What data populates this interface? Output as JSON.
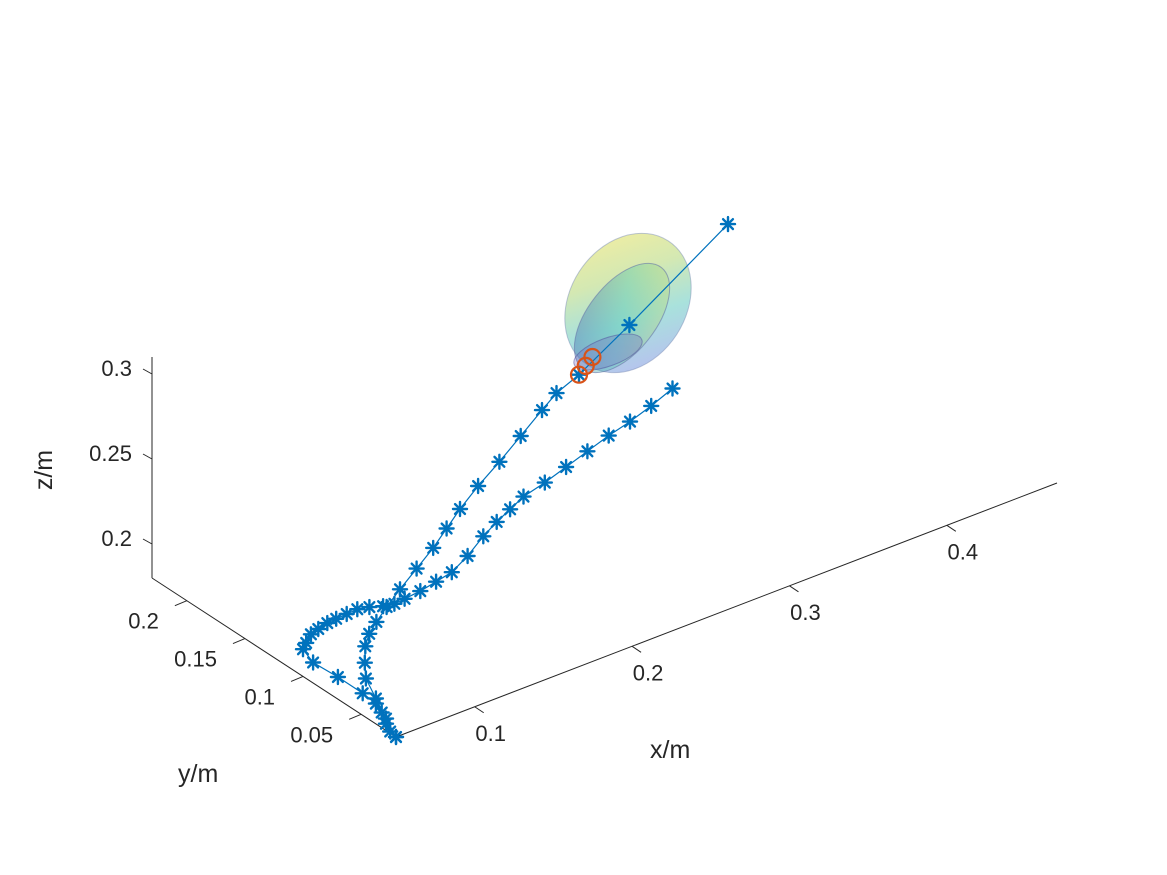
{
  "chart_data": {
    "type": "scatter",
    "title": "",
    "view": "3d",
    "xlabel": "x/m",
    "ylabel": "y/m",
    "zlabel": "z/m",
    "xticks": [
      "0.1",
      "0.2",
      "0.3",
      "0.4"
    ],
    "yticks": [
      "0.05",
      "0.1",
      "0.15",
      "0.2"
    ],
    "zticks": [
      "0.2",
      "0.25",
      "0.3"
    ],
    "xlim": [
      0.05,
      0.47
    ],
    "ylim": [
      0.02,
      0.23
    ],
    "zlim": [
      0.18,
      0.31
    ],
    "grid": false,
    "series": [
      {
        "marker": "asterisk",
        "color": "#0072BD",
        "points": [
          [
            0.05,
            0.02,
            0.18
          ],
          [
            0.05,
            0.025,
            0.181
          ],
          [
            0.051,
            0.03,
            0.183
          ],
          [
            0.052,
            0.035,
            0.187
          ],
          [
            0.052,
            0.04,
            0.19
          ],
          [
            0.051,
            0.05,
            0.192
          ],
          [
            0.05,
            0.07,
            0.193
          ],
          [
            0.049,
            0.09,
            0.193
          ],
          [
            0.05,
            0.1,
            0.196
          ],
          [
            0.052,
            0.1,
            0.199
          ],
          [
            0.055,
            0.1,
            0.203
          ],
          [
            0.056,
            0.095,
            0.208
          ],
          [
            0.058,
            0.09,
            0.213
          ],
          [
            0.06,
            0.085,
            0.217
          ],
          [
            0.063,
            0.08,
            0.221
          ],
          [
            0.066,
            0.075,
            0.225
          ],
          [
            0.07,
            0.07,
            0.227
          ],
          [
            0.075,
            0.065,
            0.228
          ],
          [
            0.08,
            0.062,
            0.229
          ],
          [
            0.085,
            0.06,
            0.231
          ],
          [
            0.095,
            0.06,
            0.232
          ],
          [
            0.105,
            0.06,
            0.234
          ],
          [
            0.115,
            0.06,
            0.236
          ],
          [
            0.125,
            0.06,
            0.242
          ],
          [
            0.135,
            0.06,
            0.25
          ],
          [
            0.145,
            0.062,
            0.254
          ],
          [
            0.155,
            0.064,
            0.257
          ],
          [
            0.165,
            0.066,
            0.26
          ],
          [
            0.18,
            0.068,
            0.262
          ],
          [
            0.195,
            0.07,
            0.265
          ],
          [
            0.21,
            0.072,
            0.268
          ],
          [
            0.225,
            0.074,
            0.271
          ],
          [
            0.24,
            0.076,
            0.273
          ],
          [
            0.255,
            0.078,
            0.276
          ],
          [
            0.27,
            0.08,
            0.28
          ],
          [
            0.05,
            0.02,
            0.18
          ],
          [
            0.051,
            0.03,
            0.186
          ],
          [
            0.052,
            0.04,
            0.193
          ],
          [
            0.053,
            0.05,
            0.2
          ],
          [
            0.056,
            0.055,
            0.206
          ],
          [
            0.06,
            0.06,
            0.212
          ],
          [
            0.064,
            0.062,
            0.217
          ],
          [
            0.07,
            0.064,
            0.221
          ],
          [
            0.078,
            0.066,
            0.226
          ],
          [
            0.088,
            0.068,
            0.232
          ],
          [
            0.1,
            0.07,
            0.239
          ],
          [
            0.112,
            0.072,
            0.246
          ],
          [
            0.122,
            0.074,
            0.253
          ],
          [
            0.132,
            0.076,
            0.26
          ],
          [
            0.145,
            0.078,
            0.268
          ],
          [
            0.16,
            0.08,
            0.276
          ],
          [
            0.175,
            0.082,
            0.285
          ],
          [
            0.19,
            0.084,
            0.294
          ],
          [
            0.2,
            0.085,
            0.3
          ],
          [
            0.215,
            0.086,
            0.305
          ],
          [
            0.25,
            0.09,
            0.32
          ],
          [
            0.32,
            0.1,
            0.35
          ]
        ]
      },
      {
        "marker": "circle",
        "color": "#D95319",
        "points": [
          [
            0.215,
            0.086,
            0.305
          ],
          [
            0.22,
            0.087,
            0.308
          ],
          [
            0.225,
            0.088,
            0.311
          ]
        ]
      }
    ],
    "surface": {
      "type": "ellipsoid",
      "colormap": "parula",
      "opacity": "translucent"
    }
  }
}
